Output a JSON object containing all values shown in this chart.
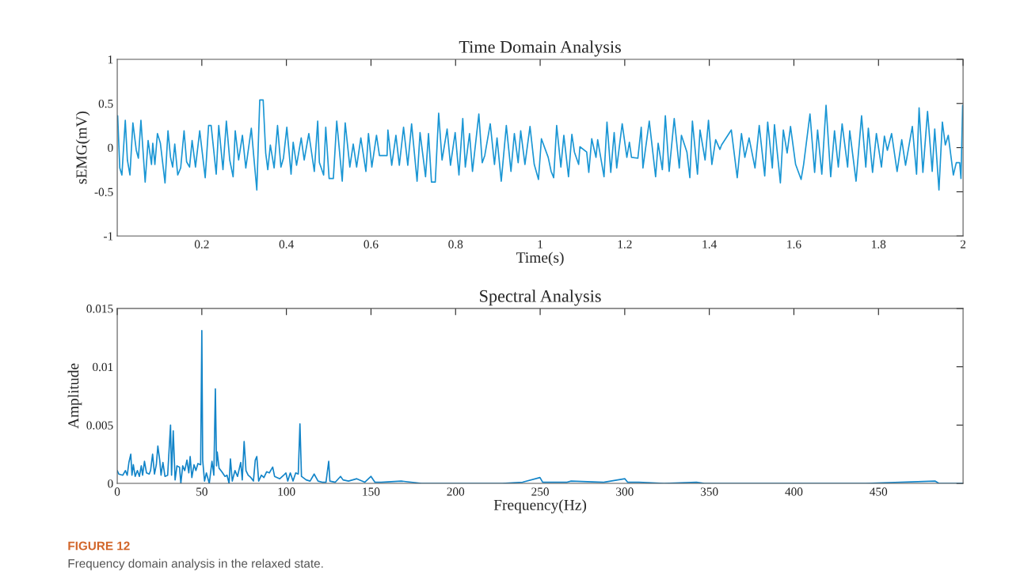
{
  "chart_data": [
    {
      "type": "line",
      "title": "Time Domain Analysis",
      "xlabel": "Time(s)",
      "ylabel": "sEMG(mV)",
      "xlim": [
        0,
        2
      ],
      "ylim": [
        -1,
        1
      ],
      "xticks": [
        0.2,
        0.4,
        0.6,
        0.8,
        1,
        1.2,
        1.4,
        1.6,
        1.8,
        2
      ],
      "yticks": [
        -1,
        -0.5,
        0,
        0.5,
        1
      ],
      "grid": false,
      "legend": false,
      "series": [
        {
          "color": "#1a96d4",
          "x": [
            0.001,
            0.006,
            0.011,
            0.019,
            0.024,
            0.03,
            0.037,
            0.045,
            0.05,
            0.056,
            0.066,
            0.073,
            0.081,
            0.084,
            0.089,
            0.095,
            0.102,
            0.113,
            0.12,
            0.126,
            0.131,
            0.136,
            0.143,
            0.15,
            0.158,
            0.164,
            0.171,
            0.177,
            0.185,
            0.195,
            0.208,
            0.216,
            0.222,
            0.234,
            0.24,
            0.25,
            0.258,
            0.266,
            0.274,
            0.279,
            0.287,
            0.296,
            0.304,
            0.317,
            0.323,
            0.33,
            0.337,
            0.345,
            0.351,
            0.356,
            0.362,
            0.371,
            0.379,
            0.387,
            0.393,
            0.401,
            0.411,
            0.416,
            0.424,
            0.435,
            0.442,
            0.453,
            0.466,
            0.474,
            0.478,
            0.488,
            0.493,
            0.501,
            0.511,
            0.519,
            0.532,
            0.539,
            0.55,
            0.558,
            0.566,
            0.576,
            0.588,
            0.594,
            0.602,
            0.613,
            0.62,
            0.638,
            0.64,
            0.649,
            0.659,
            0.667,
            0.677,
            0.687,
            0.696,
            0.709,
            0.716,
            0.729,
            0.736,
            0.743,
            0.752,
            0.76,
            0.768,
            0.78,
            0.788,
            0.799,
            0.808,
            0.817,
            0.823,
            0.833,
            0.84,
            0.855,
            0.863,
            0.869,
            0.882,
            0.892,
            0.898,
            0.908,
            0.92,
            0.931,
            0.939,
            0.948,
            0.954,
            0.964,
            0.976,
            0.986,
            0.996,
            1.003,
            1.019,
            1.026,
            1.032,
            1.039,
            1.049,
            1.056,
            1.067,
            1.075,
            1.081,
            1.091,
            1.094,
            1.11,
            1.115,
            1.122,
            1.132,
            1.136,
            1.151,
            1.158,
            1.167,
            1.175,
            1.181,
            1.194,
            1.205,
            1.211,
            1.216,
            1.231,
            1.239,
            1.243,
            1.258,
            1.273,
            1.279,
            1.289,
            1.296,
            1.305,
            1.317,
            1.329,
            1.334,
            1.347,
            1.354,
            1.36,
            1.372,
            1.378,
            1.39,
            1.398,
            1.406,
            1.415,
            1.425,
            1.429,
            1.452,
            1.466,
            1.476,
            1.484,
            1.494,
            1.508,
            1.518,
            1.531,
            1.538,
            1.549,
            1.554,
            1.568,
            1.575,
            1.584,
            1.592,
            1.604,
            1.617,
            1.623,
            1.638,
            1.649,
            1.656,
            1.666,
            1.676,
            1.687,
            1.696,
            1.705,
            1.714,
            1.727,
            1.732,
            1.747,
            1.76,
            1.77,
            1.776,
            1.786,
            1.795,
            1.807,
            1.814,
            1.821,
            1.831,
            1.844,
            1.855,
            1.864,
            1.88,
            1.89,
            1.896,
            1.905,
            1.916,
            1.927,
            1.933,
            1.943,
            1.951,
            1.958,
            1.965,
            1.977,
            1.984,
            1.992,
            1.995,
            1.999
          ],
          "values": [
            0.36,
            -0.23,
            -0.31,
            0.31,
            -0.14,
            -0.31,
            0.28,
            -0.03,
            -0.12,
            0.31,
            -0.39,
            0.08,
            -0.19,
            0.05,
            -0.19,
            0.16,
            0.05,
            -0.4,
            0.19,
            -0.11,
            -0.22,
            0.04,
            -0.31,
            -0.23,
            0.19,
            -0.16,
            -0.22,
            0.08,
            -0.22,
            0.19,
            -0.34,
            0.25,
            0.25,
            -0.3,
            0.25,
            -0.25,
            0.3,
            -0.14,
            -0.33,
            0.19,
            -0.14,
            0.14,
            -0.23,
            0.22,
            -0.11,
            -0.48,
            0.54,
            0.54,
            -0.06,
            -0.25,
            0.03,
            -0.23,
            0.25,
            -0.22,
            -0.12,
            0.23,
            -0.3,
            0.06,
            -0.2,
            0.11,
            -0.14,
            0.16,
            -0.27,
            0.3,
            -0.17,
            -0.31,
            0.23,
            -0.35,
            -0.35,
            0.3,
            -0.38,
            0.28,
            -0.22,
            0.04,
            -0.22,
            0.11,
            -0.27,
            0.16,
            -0.22,
            0.14,
            -0.09,
            -0.09,
            0.2,
            -0.2,
            0.14,
            -0.2,
            0.23,
            -0.2,
            0.27,
            -0.38,
            0.17,
            -0.33,
            0.16,
            -0.39,
            -0.39,
            0.39,
            -0.14,
            0.21,
            -0.2,
            0.17,
            -0.31,
            0.33,
            -0.22,
            0.16,
            -0.27,
            0.38,
            -0.17,
            -0.09,
            0.27,
            -0.19,
            0.11,
            -0.38,
            0.25,
            -0.27,
            0.16,
            -0.17,
            0.19,
            -0.19,
            0.24,
            -0.19,
            -0.36,
            0.1,
            -0.11,
            -0.27,
            -0.34,
            0.25,
            -0.22,
            0.14,
            -0.33,
            0.15,
            -0.05,
            -0.19,
            0.01,
            -0.05,
            -0.28,
            0.1,
            -0.11,
            0.09,
            -0.33,
            0.29,
            -0.28,
            0.17,
            -0.23,
            0.27,
            -0.11,
            0.06,
            -0.11,
            -0.12,
            0.23,
            -0.23,
            0.3,
            -0.33,
            0.05,
            -0.25,
            0.36,
            -0.27,
            0.33,
            -0.23,
            0.14,
            -0.05,
            -0.34,
            0.3,
            -0.3,
            0.2,
            -0.14,
            0.31,
            -0.19,
            0.09,
            -0.02,
            0.03,
            0.2,
            -0.34,
            0.16,
            -0.11,
            0.11,
            -0.23,
            0.25,
            -0.32,
            0.29,
            -0.23,
            0.26,
            -0.4,
            0.2,
            -0.06,
            0.24,
            -0.19,
            -0.36,
            -0.19,
            0.38,
            -0.28,
            0.2,
            -0.3,
            0.48,
            -0.33,
            0.19,
            -0.22,
            0.27,
            -0.22,
            0.19,
            -0.38,
            0.36,
            -0.22,
            0.22,
            -0.28,
            0.16,
            -0.22,
            0.13,
            -0.03,
            0.16,
            -0.27,
            0.09,
            -0.2,
            0.24,
            -0.3,
            0.45,
            -0.28,
            0.41,
            -0.27,
            0.21,
            -0.48,
            0.29,
            0.03,
            0.14,
            -0.31,
            -0.17,
            -0.17,
            -0.35,
            0.48
          ]
        }
      ]
    },
    {
      "type": "line",
      "title": "Spectral Analysis",
      "xlabel": "Frequency(Hz)",
      "ylabel": "Amplitude",
      "xlim": [
        0,
        500
      ],
      "ylim": [
        0,
        0.015
      ],
      "xticks": [
        0,
        50,
        100,
        150,
        200,
        250,
        300,
        350,
        400,
        450
      ],
      "yticks": [
        0,
        0.005,
        0.01,
        0.015
      ],
      "grid": false,
      "legend": false,
      "annotations": [
        "FIGURE 12",
        "Frequency domain analysis in the relaxed state."
      ],
      "series": [
        {
          "color": "#1284c8",
          "x": [
            0,
            0.9,
            3.3,
            4.8,
            5.9,
            6.9,
            8.0,
            8.7,
            9.5,
            10.6,
            11.9,
            13.1,
            14.2,
            15.0,
            16.1,
            17.3,
            18.9,
            19.7,
            20.9,
            22.0,
            23.1,
            24.0,
            25.1,
            25.9,
            27.0,
            28.2,
            29.8,
            31.5,
            32.1,
            33.1,
            34.2,
            35.3,
            36.8,
            37.6,
            38.7,
            39.9,
            41.2,
            42.3,
            43.1,
            44.1,
            45.4,
            46.5,
            47.7,
            49.3,
            50.0,
            50.5,
            51.6,
            52.7,
            54.4,
            56.0,
            57.1,
            58.0,
            58.7,
            59.1,
            60.2,
            61.8,
            63.7,
            64.9,
            66.1,
            66.9,
            68.0,
            69.6,
            71.1,
            73.0,
            73.9,
            75.0,
            76.1,
            77.4,
            79.0,
            80.5,
            81.6,
            82.5,
            83.6,
            85.2,
            86.7,
            88.3,
            89.9,
            91.9,
            93.0,
            96.1,
            98.4,
            99.7,
            100.8,
            102.3,
            103.9,
            105.5,
            107.0,
            108.0,
            108.9,
            111.7,
            114.0,
            116.4,
            118.7,
            121.1,
            123.4,
            125.0,
            125.7,
            128.9,
            132.0,
            133.5,
            136.7,
            141.6,
            146.3,
            150.0,
            152.3,
            156.0,
            167.9,
            179.9,
            203.7,
            227.6,
            239.6,
            249.9,
            251.5,
            265.9,
            268.3,
            287.4,
            300.1,
            301.7,
            308.4,
            323.2,
            342.4,
            347.1,
            371.0,
            394.8,
            418.7,
            442.6,
            483.4,
            485.7,
            500
          ],
          "values": [
            0.0011,
            0.0008,
            0.0007,
            0.0011,
            0.0007,
            0.0018,
            0.0025,
            0.0007,
            0.0016,
            0.0006,
            0.0011,
            0.0006,
            0.0015,
            0.0007,
            0.0019,
            0.0009,
            0.0008,
            0.0011,
            0.0025,
            0.0008,
            0.0016,
            0.0032,
            0.002,
            0.0007,
            0.0018,
            0.0006,
            0.0007,
            0.005,
            0.0007,
            0.0045,
            0.0003,
            0.0015,
            0.0014,
            0.0,
            0.0015,
            0.0011,
            0.002,
            0.0009,
            0.0023,
            0.0005,
            0.0016,
            0.0011,
            0.0017,
            0.0016,
            0.0131,
            0.002,
            0.0002,
            0.0009,
            0.0,
            0.0019,
            0.0007,
            0.0081,
            0.0015,
            0.0027,
            0.0013,
            0.001,
            0.0006,
            0.0007,
            0.0,
            0.0021,
            0.0002,
            0.0011,
            0.0006,
            0.0018,
            0.0003,
            0.0036,
            0.0011,
            0.0007,
            0.0005,
            0.0002,
            0.002,
            0.0023,
            0.0002,
            0.0007,
            0.0005,
            0.001,
            0.0009,
            0.0014,
            0.0006,
            0.0004,
            0.0007,
            0.0009,
            0.0002,
            0.0009,
            0.0002,
            0.0009,
            0.0008,
            0.0051,
            0.0006,
            0.0003,
            0.0002,
            0.0008,
            0.0002,
            0.0001,
            0.0001,
            0.0019,
            0.0002,
            0.0001,
            0.0006,
            0.0003,
            0.0002,
            0.0004,
            0.0001,
            0.0006,
            0.0001,
            0.0001,
            0.0002,
            0.0,
            0.0,
            0.0,
            0.0001,
            0.0005,
            0.0001,
            0.0001,
            0.0002,
            0.0001,
            0.0004,
            0.0001,
            0.0001,
            0.0,
            0.0001,
            0.0,
            0.0,
            0.0,
            0.0,
            0.0,
            0.0002,
            0.0,
            0.0
          ]
        }
      ]
    }
  ]
}
